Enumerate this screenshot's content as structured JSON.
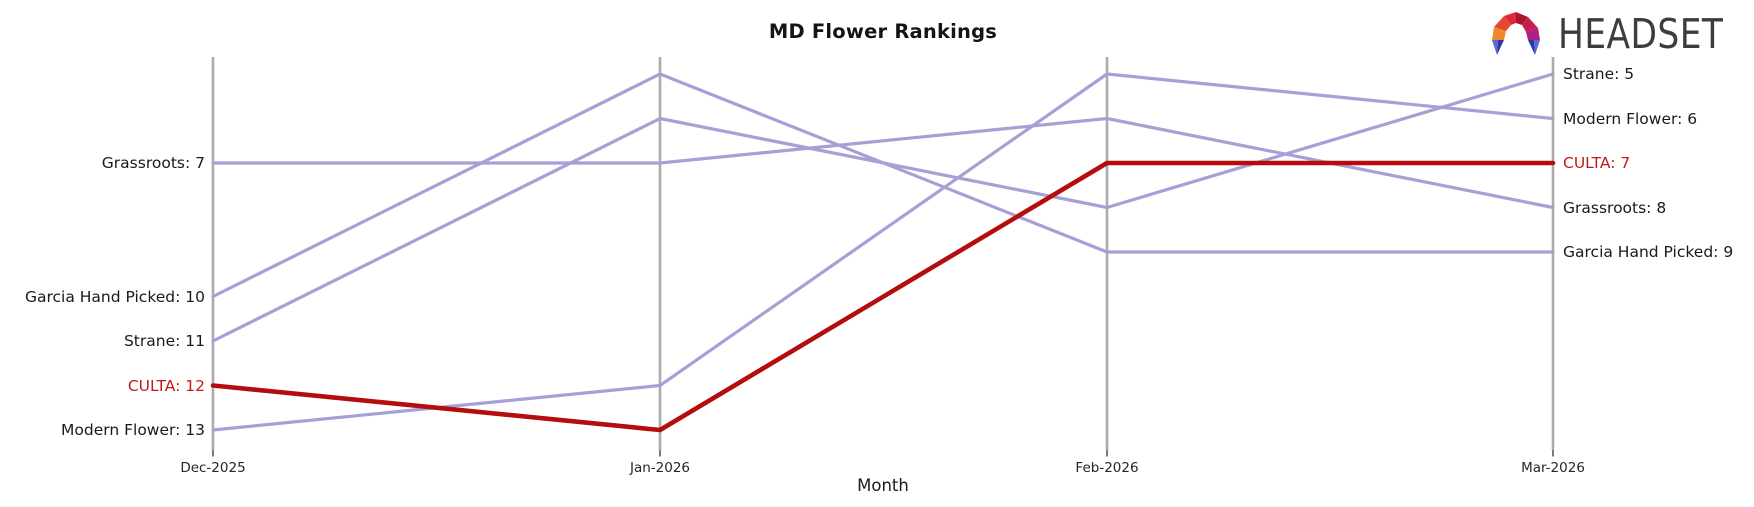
{
  "title": "MD Flower Rankings",
  "xlabel": "Month",
  "logo": {
    "text": "HEADSET"
  },
  "chart_data": {
    "type": "line",
    "subtype": "bump-ranking",
    "title": "MD Flower Rankings",
    "xlabel": "Month",
    "ylabel": "",
    "x": [
      "Dec-2025",
      "Jan-2026",
      "Feb-2026",
      "Mar-2026"
    ],
    "y_axis": {
      "inverted": true,
      "rank_top": 5,
      "rank_bottom": 13,
      "gridlines": false
    },
    "label_format": "{name}: {rank}",
    "series": [
      {
        "name": "Grassroots",
        "values": [
          7,
          7,
          6,
          8
        ],
        "highlight": false
      },
      {
        "name": "Garcia Hand Picked",
        "values": [
          10,
          5,
          9,
          9
        ],
        "highlight": false
      },
      {
        "name": "Strane",
        "values": [
          11,
          6,
          8,
          5
        ],
        "highlight": false
      },
      {
        "name": "CULTA",
        "values": [
          12,
          13,
          7,
          7
        ],
        "highlight": true
      },
      {
        "name": "Modern Flower",
        "values": [
          13,
          12,
          5,
          6
        ],
        "highlight": false
      }
    ],
    "colors": {
      "line_default": "#a89fd6",
      "line_highlight": "#b50d0d",
      "label_default": "#1a1a1a",
      "label_highlight": "#c11a1a",
      "axis_line": "#ababab",
      "tick_mark": "#333333",
      "tick_text": "#262626"
    }
  }
}
